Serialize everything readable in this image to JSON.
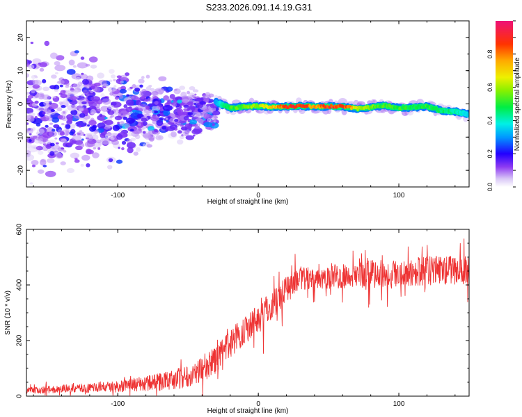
{
  "title": "S233.2026.091.14.19.G31",
  "chart_data": [
    {
      "type": "heatmap",
      "title": "S233.2026.091.14.19.G31",
      "xlabel": "Height of straight line (km)",
      "ylabel": "Frequency (Hz)",
      "xlim": [
        -165,
        150
      ],
      "ylim": [
        -25,
        25
      ],
      "xticks": [
        -100,
        0,
        100
      ],
      "xtick_labels": [
        "-100",
        "0",
        "100"
      ],
      "yticks": [
        -20,
        -10,
        0,
        10,
        20
      ],
      "ytick_labels": [
        "-20",
        "-10",
        "0",
        "10",
        "20"
      ],
      "colorbar": {
        "label": "Normalized spectral amplitude",
        "range": [
          0,
          1
        ],
        "ticks": [
          0.0,
          0.2,
          0.4,
          0.6,
          0.8
        ],
        "tick_labels": [
          "0.0",
          "0.2",
          "0.4",
          "0.6",
          "0.8"
        ]
      },
      "ridge": {
        "x": [
          -30,
          -20,
          -10,
          0,
          10,
          20,
          30,
          40,
          50,
          60,
          70,
          80,
          90,
          100,
          110,
          120,
          130,
          140,
          150
        ],
        "frequency": [
          0.5,
          -1.2,
          -0.8,
          -0.7,
          -0.9,
          -0.8,
          -0.7,
          -0.8,
          -0.8,
          -0.8,
          -1.4,
          -1.0,
          -0.5,
          -1.2,
          -1.0,
          -0.8,
          -2.0,
          -2.3,
          -3.2
        ],
        "amplitude": [
          0.35,
          0.55,
          0.6,
          0.65,
          0.75,
          0.95,
          0.95,
          0.8,
          0.95,
          0.95,
          0.7,
          0.6,
          0.55,
          0.55,
          0.5,
          0.55,
          0.5,
          0.45,
          0.4
        ]
      },
      "scatter_region": {
        "x_range": [
          -165,
          -30
        ],
        "frequency_center": -3,
        "note": "diffuse low-amplitude spectral energy"
      }
    },
    {
      "type": "line",
      "xlabel": "Height of straight line (km)",
      "ylabel": "SNR (10 * v/v)",
      "xlim": [
        -165,
        150
      ],
      "ylim": [
        0,
        600
      ],
      "xticks": [
        -100,
        0,
        100
      ],
      "xtick_labels": [
        "-100",
        "0",
        "100"
      ],
      "yticks": [
        0,
        200,
        400,
        600
      ],
      "ytick_labels": [
        "0",
        "200",
        "400",
        "600"
      ],
      "color": "#ee3333",
      "trend": {
        "x": [
          -165,
          -140,
          -120,
          -100,
          -80,
          -60,
          -50,
          -40,
          -30,
          -20,
          -10,
          0,
          10,
          20,
          30,
          40,
          60,
          80,
          100,
          120,
          140,
          150
        ],
        "y": [
          20,
          25,
          30,
          35,
          45,
          60,
          75,
          95,
          130,
          190,
          240,
          280,
          330,
          390,
          415,
          430,
          435,
          440,
          445,
          450,
          455,
          455
        ]
      },
      "noise_amplitude": {
        "x": [
          -165,
          -100,
          -40,
          0,
          30,
          150
        ],
        "y": [
          12,
          20,
          45,
          60,
          45,
          55
        ]
      }
    }
  ]
}
